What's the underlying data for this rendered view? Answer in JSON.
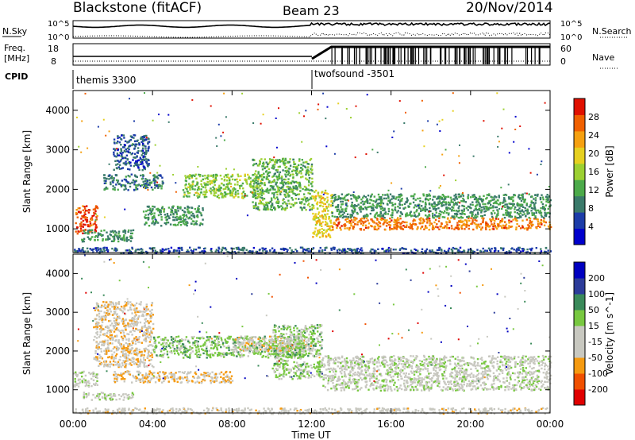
{
  "header": {
    "station": "Blackstone (fitACF)",
    "beam": "Beam 23",
    "date": "20/Nov/2014"
  },
  "noise_panel": {
    "left_label": "N.Sky",
    "left_ticks": [
      "10^5",
      "10^0"
    ],
    "right_label": "N.Search",
    "right_ticks": [
      "10^5",
      "10^0"
    ]
  },
  "freq_panel": {
    "left_label_1": "Freq.",
    "left_label_2": "[MHz]",
    "left_ticks": [
      "18",
      "8"
    ],
    "right_label": "Nave",
    "right_ticks": [
      "60",
      "0"
    ]
  },
  "cpid": {
    "label": "CPID",
    "segments": [
      {
        "name": "themis 3300",
        "start_hour": 0
      },
      {
        "name": "twofsound -3501",
        "start_hour": 12.02
      }
    ]
  },
  "chart_data": [
    {
      "type": "heatmap",
      "name": "power",
      "ylabel": "Slant Range [km]",
      "ylim": [
        400,
        4500
      ],
      "xlim_hours": [
        0,
        24
      ],
      "yticks": [
        1000,
        2000,
        3000,
        4000
      ],
      "colorbar": {
        "label": "Power [dB]",
        "range": [
          0,
          30
        ],
        "ticks": [
          "28",
          "24",
          "20",
          "16",
          "12",
          "8",
          "4"
        ],
        "colors": [
          "#0000cc",
          "#1c3ca8",
          "#3a7a6a",
          "#4caa4a",
          "#9cd032",
          "#e6d020",
          "#f5a010",
          "#f06000",
          "#e01000"
        ]
      },
      "bands": [
        {
          "t": [
            0.1,
            1.2
          ],
          "r": [
            900,
            1600
          ],
          "p": 26
        },
        {
          "t": [
            0.4,
            3.0
          ],
          "r": [
            700,
            1000
          ],
          "p": 10
        },
        {
          "t": [
            1.5,
            4.5
          ],
          "r": [
            2000,
            2400
          ],
          "p": 8
        },
        {
          "t": [
            2.0,
            3.8
          ],
          "r": [
            2500,
            3400
          ],
          "p": 6
        },
        {
          "t": [
            3.5,
            6.5
          ],
          "r": [
            1100,
            1600
          ],
          "p": 10
        },
        {
          "t": [
            5.5,
            9.5
          ],
          "r": [
            1800,
            2400
          ],
          "p": 14
        },
        {
          "t": [
            9.0,
            12.0
          ],
          "r": [
            1500,
            2800
          ],
          "p": 12
        },
        {
          "t": [
            12.0,
            13.0
          ],
          "r": [
            800,
            2000
          ],
          "p": 18
        },
        {
          "t": [
            13.0,
            24.0
          ],
          "r": [
            1000,
            1300
          ],
          "p": 24
        },
        {
          "t": [
            13.0,
            24.0
          ],
          "r": [
            1300,
            1900
          ],
          "p": 10
        },
        {
          "t": [
            0.0,
            24.0
          ],
          "r": [
            400,
            550
          ],
          "p": 6
        }
      ]
    },
    {
      "type": "heatmap",
      "name": "velocity",
      "ylabel": "Slant Range [km]",
      "xlabel": "Time UT",
      "ylim": [
        400,
        4500
      ],
      "xlim_hours": [
        0,
        24
      ],
      "yticks": [
        1000,
        2000,
        3000,
        4000
      ],
      "xticks": [
        "00:00",
        "04:00",
        "08:00",
        "12:00",
        "16:00",
        "20:00",
        "00:00"
      ],
      "colorbar": {
        "label": "Velocity [m s^-1]",
        "range": [
          -250,
          250
        ],
        "ticks": [
          "200",
          "100",
          "50",
          "15",
          "-15",
          "-50",
          "-100",
          "-200"
        ],
        "colors": [
          "#e00000",
          "#f05000",
          "#f59a10",
          "#c8c8c0",
          "#c8c8c0",
          "#78c840",
          "#3a8a5a",
          "#2c3c9a",
          "#0000c0"
        ]
      },
      "bands": [
        {
          "t": [
            0.0,
            1.2
          ],
          "r": [
            1100,
            1500
          ],
          "v": 0
        },
        {
          "t": [
            0.5,
            3.0
          ],
          "r": [
            750,
            950
          ],
          "v": 0
        },
        {
          "t": [
            1.0,
            4.0
          ],
          "r": [
            1600,
            3300
          ],
          "v": -60
        },
        {
          "t": [
            2.0,
            8.0
          ],
          "r": [
            1200,
            1500
          ],
          "v": -80
        },
        {
          "t": [
            4.0,
            11.5
          ],
          "r": [
            1850,
            2400
          ],
          "v": 50
        },
        {
          "t": [
            8.0,
            12.0
          ],
          "r": [
            2000,
            2400
          ],
          "v": -50
        },
        {
          "t": [
            10.0,
            12.5
          ],
          "r": [
            1300,
            2700
          ],
          "v": 40
        },
        {
          "t": [
            12.5,
            24.0
          ],
          "r": [
            1000,
            1900
          ],
          "v": 0
        },
        {
          "t": [
            0.0,
            24.0
          ],
          "r": [
            400,
            550
          ],
          "v": -40
        }
      ]
    }
  ]
}
